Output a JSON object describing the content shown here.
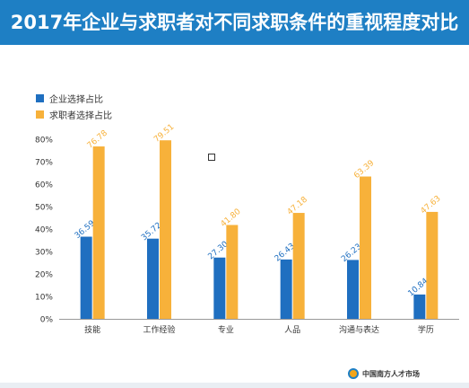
{
  "title": "2017年企业与求职者对不同求职条件的重视程度对比",
  "colors": {
    "header": "#1e7fc4",
    "enterprise": "#1f6fc0",
    "seeker": "#f7b13a"
  },
  "footer_logo_text": "中国南方人才市场",
  "chart_data": {
    "type": "bar",
    "categories": [
      "技能",
      "工作经验",
      "专业",
      "人品",
      "沟通与表达",
      "学历"
    ],
    "series": [
      {
        "name": "企业选择占比",
        "values": [
          36.59,
          35.72,
          27.3,
          26.43,
          26.23,
          10.84
        ]
      },
      {
        "name": "求职者选择占比",
        "values": [
          76.78,
          79.51,
          41.8,
          47.18,
          63.39,
          47.63
        ]
      }
    ],
    "y_ticks": [
      "0%",
      "10%",
      "20%",
      "30%",
      "40%",
      "50%",
      "60%",
      "70%",
      "80%"
    ],
    "ylim": [
      0,
      80
    ],
    "legend_position": "top-left",
    "grid": false
  }
}
